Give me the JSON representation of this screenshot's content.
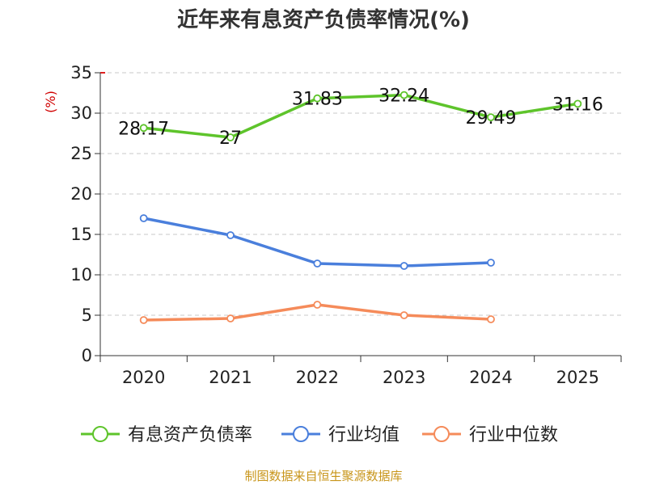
{
  "chart_data": {
    "type": "line",
    "title": "近年来有息资产负债率情况(%)",
    "ylabel": "(%)",
    "categories": [
      "2020",
      "2021",
      "2022",
      "2023",
      "2024",
      "2025"
    ],
    "ylim": [
      0,
      35
    ],
    "yticks": [
      0,
      5,
      10,
      15,
      20,
      25,
      30,
      35
    ],
    "grid": true,
    "legend_position": "bottom",
    "series": [
      {
        "name": "有息资产负债率",
        "color": "#5ec42b",
        "values": [
          28.17,
          27,
          31.83,
          32.24,
          29.49,
          31.16
        ],
        "labels": [
          "28.17",
          "27",
          "31.83",
          "32.24",
          "29.49",
          "31.16"
        ],
        "show_labels": true
      },
      {
        "name": "行业均值",
        "color": "#4a7fdc",
        "values": [
          17.0,
          14.9,
          11.4,
          11.1,
          11.5,
          null
        ],
        "show_labels": false
      },
      {
        "name": "行业中位数",
        "color": "#f58b5a",
        "values": [
          4.4,
          4.6,
          6.3,
          5.0,
          4.5,
          null
        ],
        "show_labels": false
      }
    ],
    "source": "制图数据来自恒生聚源数据库"
  }
}
